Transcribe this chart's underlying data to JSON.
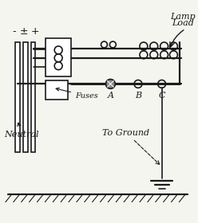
{
  "bg_color": "#f5f5f0",
  "line_color": "#1a1a1a",
  "labels": {
    "lamp_load": [
      "Lamp",
      "Load"
    ],
    "fuses": "Fuses",
    "neutral": "Neutral",
    "to_ground": "To Ground",
    "A": "A",
    "B": "B",
    "C": "C",
    "minus": "-",
    "plus_center": "±",
    "plus": "+"
  },
  "figsize": [
    2.48,
    2.8
  ],
  "dpi": 100
}
